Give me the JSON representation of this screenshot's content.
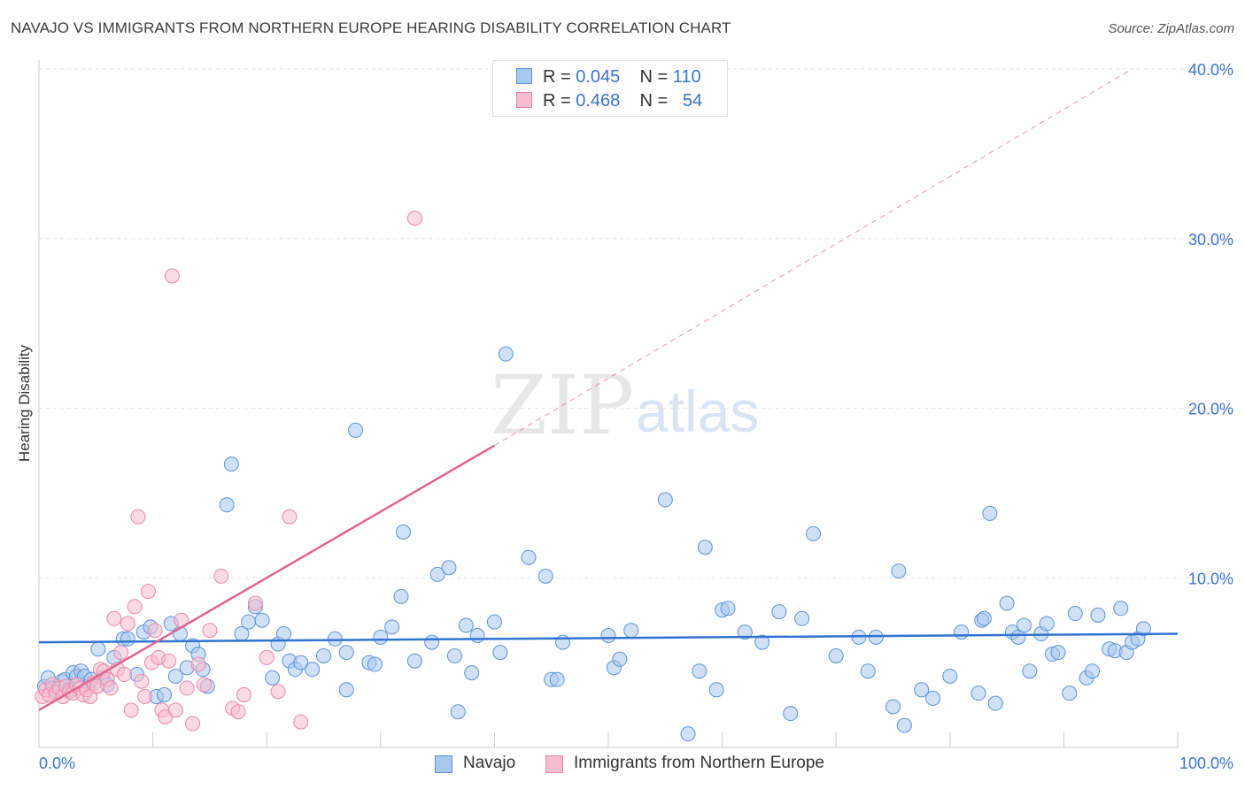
{
  "title": "NAVAJO VS IMMIGRANTS FROM NORTHERN EUROPE HEARING DISABILITY CORRELATION CHART",
  "source": "Source: ZipAtlas.com",
  "watermark": {
    "zip": "ZIP",
    "atlas": "atlas"
  },
  "legend": {
    "r_label": "R =",
    "n_label": "N =",
    "rows": [
      {
        "name": "Navajo",
        "r": "0.045",
        "n": "110"
      },
      {
        "name": "Immigrants from Northern Europe",
        "r": "0.468",
        "n": "54"
      }
    ]
  },
  "colors": {
    "blue_fill": "#a9c8ef",
    "blue_stroke": "#5b93d6",
    "blue_line": "#2f74d0",
    "pink_fill": "#f6bdd0",
    "pink_stroke": "#ea87a8",
    "pink_line": "#e2648f",
    "tick_label": "#3b74c8",
    "grid": "#e6e6e6"
  },
  "chart_data": {
    "type": "scatter",
    "title": "NAVAJO VS IMMIGRANTS FROM NORTHERN EUROPE HEARING DISABILITY CORRELATION CHART",
    "xlabel": "",
    "ylabel": "Hearing Disability",
    "xlim": [
      0,
      100
    ],
    "ylim": [
      0,
      40
    ],
    "x_tick_labels": [
      "0.0%",
      "100.0%"
    ],
    "y_ticks": [
      10,
      20,
      30,
      40
    ],
    "y_tick_labels": [
      "10.0%",
      "20.0%",
      "30.0%",
      "40.0%"
    ],
    "grid": true,
    "legend_position": "top-center",
    "series": [
      {
        "name": "Navajo",
        "r": 0.045,
        "n": 110,
        "trend": {
          "x": [
            0,
            100
          ],
          "y": [
            6.2,
            6.7
          ]
        },
        "points": [
          [
            0.5,
            3.6
          ],
          [
            0.8,
            4.1
          ],
          [
            1.2,
            3.5
          ],
          [
            1.6,
            3.3
          ],
          [
            2.0,
            3.9
          ],
          [
            2.3,
            4.0
          ],
          [
            2.6,
            3.4
          ],
          [
            3.0,
            4.4
          ],
          [
            3.3,
            4.2
          ],
          [
            3.7,
            4.5
          ],
          [
            4.0,
            4.2
          ],
          [
            4.3,
            3.6
          ],
          [
            4.6,
            4.0
          ],
          [
            5.2,
            5.8
          ],
          [
            5.6,
            4.1
          ],
          [
            6.0,
            3.7
          ],
          [
            6.6,
            5.3
          ],
          [
            7.4,
            6.4
          ],
          [
            7.8,
            6.4
          ],
          [
            8.6,
            4.3
          ],
          [
            9.2,
            6.8
          ],
          [
            9.8,
            7.1
          ],
          [
            10.3,
            3.0
          ],
          [
            11.0,
            3.1
          ],
          [
            11.6,
            7.3
          ],
          [
            12.0,
            4.2
          ],
          [
            12.4,
            6.7
          ],
          [
            13.0,
            4.7
          ],
          [
            13.5,
            6.0
          ],
          [
            14.0,
            5.5
          ],
          [
            14.4,
            4.6
          ],
          [
            14.8,
            3.6
          ],
          [
            16.5,
            14.3
          ],
          [
            16.9,
            16.7
          ],
          [
            17.8,
            6.7
          ],
          [
            18.4,
            7.4
          ],
          [
            19.0,
            8.3
          ],
          [
            19.6,
            7.5
          ],
          [
            20.5,
            4.1
          ],
          [
            21.0,
            6.1
          ],
          [
            21.5,
            6.7
          ],
          [
            22.0,
            5.1
          ],
          [
            22.5,
            4.6
          ],
          [
            23.0,
            5.0
          ],
          [
            24.0,
            4.6
          ],
          [
            25.0,
            5.4
          ],
          [
            26.0,
            6.4
          ],
          [
            27.0,
            3.4
          ],
          [
            27.0,
            5.6
          ],
          [
            27.8,
            18.7
          ],
          [
            29.0,
            5.0
          ],
          [
            29.5,
            4.9
          ],
          [
            30.0,
            6.5
          ],
          [
            31.0,
            7.1
          ],
          [
            31.8,
            8.9
          ],
          [
            32.0,
            12.7
          ],
          [
            33.0,
            5.1
          ],
          [
            34.5,
            6.2
          ],
          [
            35.0,
            10.2
          ],
          [
            36.0,
            10.6
          ],
          [
            36.5,
            5.4
          ],
          [
            36.8,
            2.1
          ],
          [
            37.5,
            7.2
          ],
          [
            38.0,
            4.4
          ],
          [
            38.5,
            6.6
          ],
          [
            40.0,
            7.4
          ],
          [
            40.5,
            5.6
          ],
          [
            41.0,
            23.2
          ],
          [
            43.0,
            11.2
          ],
          [
            44.5,
            10.1
          ],
          [
            45.0,
            4.0
          ],
          [
            45.5,
            4.0
          ],
          [
            46.0,
            6.2
          ],
          [
            50.0,
            6.6
          ],
          [
            50.5,
            4.7
          ],
          [
            51.0,
            5.2
          ],
          [
            52.0,
            6.9
          ],
          [
            55.0,
            14.6
          ],
          [
            57.0,
            0.8
          ],
          [
            58.0,
            4.5
          ],
          [
            58.5,
            11.8
          ],
          [
            59.5,
            3.4
          ],
          [
            60.0,
            8.1
          ],
          [
            60.5,
            8.2
          ],
          [
            62.0,
            6.8
          ],
          [
            63.5,
            6.2
          ],
          [
            65.0,
            8.0
          ],
          [
            66.0,
            2.0
          ],
          [
            67.0,
            7.6
          ],
          [
            68.0,
            12.6
          ],
          [
            70.0,
            5.4
          ],
          [
            72.0,
            6.5
          ],
          [
            72.8,
            4.5
          ],
          [
            73.5,
            6.5
          ],
          [
            75.0,
            2.4
          ],
          [
            75.5,
            10.4
          ],
          [
            76.0,
            1.3
          ],
          [
            77.5,
            3.4
          ],
          [
            78.5,
            2.9
          ],
          [
            80.0,
            4.2
          ],
          [
            81.0,
            6.8
          ],
          [
            82.5,
            3.2
          ],
          [
            82.8,
            7.5
          ],
          [
            83.0,
            7.6
          ],
          [
            83.5,
            13.8
          ],
          [
            84.0,
            2.6
          ],
          [
            85.0,
            8.5
          ],
          [
            85.5,
            6.8
          ],
          [
            86.0,
            6.5
          ],
          [
            86.5,
            7.2
          ],
          [
            87.0,
            4.5
          ],
          [
            88.0,
            6.7
          ],
          [
            88.5,
            7.3
          ],
          [
            89.0,
            5.5
          ],
          [
            89.5,
            5.6
          ],
          [
            90.5,
            3.2
          ],
          [
            91.0,
            7.9
          ],
          [
            92.0,
            4.1
          ],
          [
            92.5,
            4.5
          ],
          [
            93.0,
            7.8
          ],
          [
            94.0,
            5.8
          ],
          [
            94.5,
            5.7
          ],
          [
            95.0,
            8.2
          ],
          [
            95.5,
            5.6
          ],
          [
            96.0,
            6.2
          ],
          [
            96.5,
            6.4
          ],
          [
            97.0,
            7.0
          ]
        ]
      },
      {
        "name": "Immigrants from Northern Europe",
        "r": 0.468,
        "n": 54,
        "trend": {
          "x": [
            0,
            40
          ],
          "y": [
            2.2,
            17.8
          ]
        },
        "trend_extension": {
          "x": [
            40,
            96
          ],
          "y": [
            17.8,
            40
          ]
        },
        "points": [
          [
            0.3,
            3.0
          ],
          [
            0.6,
            3.4
          ],
          [
            0.9,
            3.1
          ],
          [
            1.2,
            3.7
          ],
          [
            1.5,
            3.2
          ],
          [
            1.8,
            3.5
          ],
          [
            2.1,
            3.0
          ],
          [
            2.4,
            3.6
          ],
          [
            2.7,
            3.3
          ],
          [
            3.0,
            3.2
          ],
          [
            3.3,
            3.7
          ],
          [
            3.6,
            3.5
          ],
          [
            3.9,
            3.1
          ],
          [
            4.2,
            3.4
          ],
          [
            4.5,
            3.0
          ],
          [
            4.8,
            3.8
          ],
          [
            5.1,
            3.6
          ],
          [
            5.4,
            4.6
          ],
          [
            5.7,
            4.5
          ],
          [
            6.0,
            4.0
          ],
          [
            6.3,
            3.5
          ],
          [
            6.6,
            7.6
          ],
          [
            6.9,
            4.6
          ],
          [
            7.2,
            5.6
          ],
          [
            7.5,
            4.3
          ],
          [
            7.8,
            7.3
          ],
          [
            8.1,
            2.2
          ],
          [
            8.4,
            8.3
          ],
          [
            8.7,
            13.6
          ],
          [
            9.0,
            3.9
          ],
          [
            9.3,
            3.0
          ],
          [
            9.6,
            9.2
          ],
          [
            9.9,
            5.0
          ],
          [
            10.2,
            6.9
          ],
          [
            10.5,
            5.3
          ],
          [
            10.8,
            2.2
          ],
          [
            11.1,
            1.8
          ],
          [
            11.4,
            5.1
          ],
          [
            11.7,
            27.8
          ],
          [
            12.0,
            2.2
          ],
          [
            12.5,
            7.5
          ],
          [
            13.0,
            3.5
          ],
          [
            13.5,
            1.4
          ],
          [
            14.0,
            4.9
          ],
          [
            14.5,
            3.7
          ],
          [
            15.0,
            6.9
          ],
          [
            16.0,
            10.1
          ],
          [
            17.0,
            2.3
          ],
          [
            17.5,
            2.1
          ],
          [
            18.0,
            3.1
          ],
          [
            19.0,
            8.5
          ],
          [
            20.0,
            5.3
          ],
          [
            21.0,
            3.3
          ],
          [
            22.0,
            13.6
          ],
          [
            23.0,
            1.5
          ],
          [
            33.0,
            31.2
          ]
        ]
      }
    ]
  }
}
